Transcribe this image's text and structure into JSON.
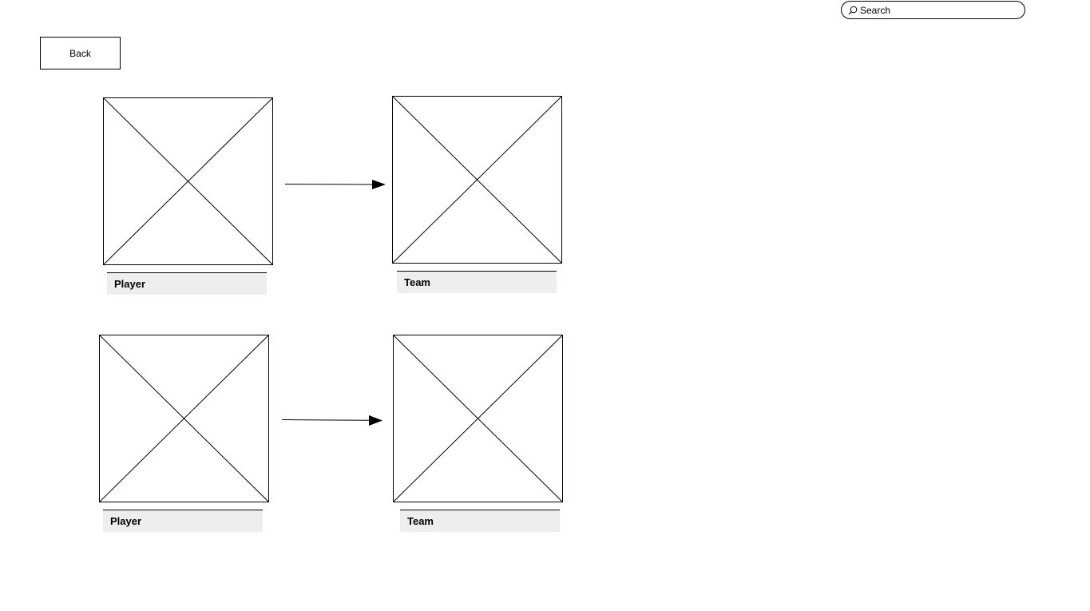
{
  "search": {
    "placeholder": "Search",
    "icon": "search-icon"
  },
  "back_button": {
    "label": "Back"
  },
  "rows": [
    {
      "left": {
        "caption": "Player",
        "icon": "image-placeholder-icon"
      },
      "arrow": "arrow-right-icon",
      "right": {
        "caption": "Team",
        "icon": "image-placeholder-icon"
      }
    },
    {
      "left": {
        "caption": "Player",
        "icon": "image-placeholder-icon"
      },
      "arrow": "arrow-right-icon",
      "right": {
        "caption": "Team",
        "icon": "image-placeholder-icon"
      }
    }
  ]
}
